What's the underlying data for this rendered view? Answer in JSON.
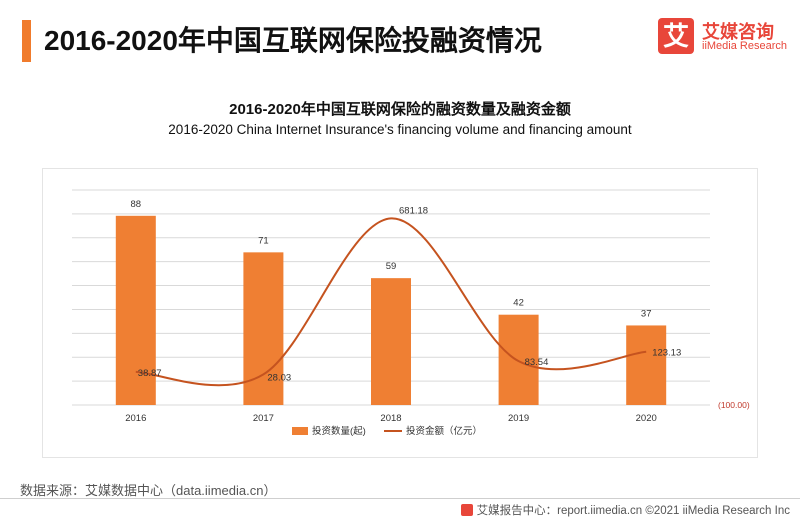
{
  "page": {
    "title": "2016-2020年中国互联网保险投融资情况"
  },
  "logo": {
    "glyph": "艾",
    "name_cn": "艾媒咨询",
    "name_en": "iiMedia Research"
  },
  "source": "数据来源：艾媒数据中心（data.iimedia.cn）",
  "footer": {
    "text": "艾媒报告中心：report.iimedia.cn  ©2021  iiMedia Research  Inc"
  },
  "colors": {
    "accent": "#f07b2c",
    "bar": "#ef7f33",
    "line": "#c5531f",
    "brand": "#e8463a"
  },
  "chart_data": {
    "type": "bar",
    "title": "2016-2020年中国互联网保险的融资数量及融资金额",
    "subtitle": "2016-2020 China Internet Insurance's financing volume and financing amount",
    "categories": [
      "2016",
      "2017",
      "2018",
      "2019",
      "2020"
    ],
    "series": [
      {
        "name": "投资数量(起)",
        "type": "bar",
        "axis": "left",
        "values": [
          88,
          71,
          59,
          42,
          37
        ],
        "labels": [
          "88",
          "71",
          "59",
          "42",
          "37"
        ]
      },
      {
        "name": "投资金额（亿元）",
        "type": "line",
        "axis": "right",
        "smooth": true,
        "values": [
          38.87,
          28.03,
          681.18,
          83.54,
          123.13
        ],
        "labels": [
          "38.87",
          "28.03",
          "681.18",
          "83.54",
          "123.13"
        ]
      }
    ],
    "left_axis": {
      "ylim": [
        0,
        100
      ],
      "ticks_shown": false
    },
    "right_axis": {
      "ylim": [
        -100,
        800
      ],
      "tick_labels": [
        "(100.00)"
      ]
    },
    "grid": true,
    "legend": "bottom"
  }
}
